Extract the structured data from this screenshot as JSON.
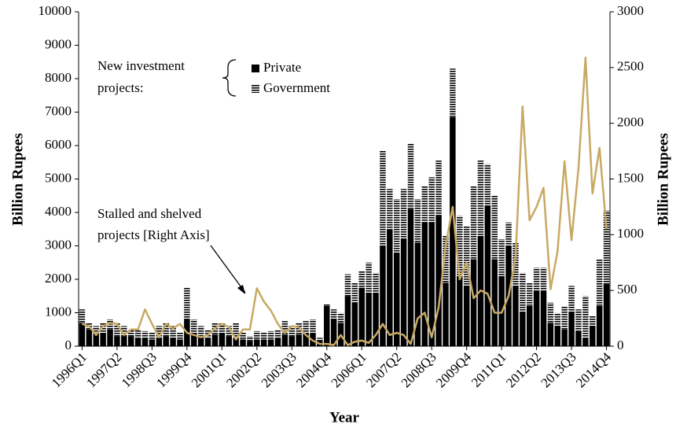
{
  "chart_data": {
    "type": "bar",
    "x_label": "Year",
    "y_label": "Billion Rupees",
    "y2_label": "Billion Rupees",
    "categories": [
      "1996Q1",
      null,
      null,
      null,
      null,
      "1997Q2",
      null,
      null,
      null,
      null,
      "1998Q3",
      null,
      null,
      null,
      null,
      "1999Q4",
      null,
      null,
      null,
      null,
      "2001Q1",
      null,
      null,
      null,
      null,
      "2002Q2",
      null,
      null,
      null,
      null,
      "2003Q3",
      null,
      null,
      null,
      null,
      "2004Q4",
      null,
      null,
      null,
      null,
      "2006Q1",
      null,
      null,
      null,
      null,
      "2007Q2",
      null,
      null,
      null,
      null,
      "2008Q3",
      null,
      null,
      null,
      null,
      "2009Q4",
      null,
      null,
      null,
      null,
      "2011Q1",
      null,
      null,
      null,
      null,
      "2012Q2",
      null,
      null,
      null,
      null,
      "2013Q3",
      null,
      null,
      null,
      null,
      "2014Q4"
    ],
    "ylim": [
      0,
      10000
    ],
    "yticks": [
      0,
      1000,
      2000,
      3000,
      4000,
      5000,
      6000,
      7000,
      8000,
      9000,
      10000
    ],
    "y2lim": [
      0,
      3000
    ],
    "y2ticks": [
      0,
      500,
      1000,
      1500,
      2000,
      2500,
      3000
    ],
    "legend_title": [
      "New investment",
      "projects:"
    ],
    "annotation": [
      "Stalled and shelved",
      "projects [Right Axis]"
    ],
    "series": [
      {
        "name": "Private",
        "color": "#000000",
        "pattern": "solid",
        "stack": true,
        "values": [
          700,
          500,
          400,
          400,
          500,
          300,
          300,
          300,
          250,
          250,
          200,
          250,
          300,
          250,
          200,
          800,
          400,
          300,
          250,
          350,
          400,
          300,
          250,
          200,
          150,
          200,
          200,
          200,
          250,
          350,
          300,
          350,
          400,
          400,
          150,
          1200,
          800,
          700,
          1500,
          1300,
          1750,
          1600,
          1600,
          3000,
          3500,
          2800,
          3200,
          4100,
          3100,
          3700,
          3700,
          3900,
          1900,
          6850,
          2100,
          1800,
          2600,
          3300,
          4200,
          2600,
          2100,
          3000,
          1800,
          1000,
          1200,
          1650,
          1650,
          700,
          600,
          500,
          1000,
          450,
          250,
          600,
          1200,
          1850
        ]
      },
      {
        "name": "Government",
        "color": "#000000",
        "pattern": "stripes",
        "stack": true,
        "values": [
          400,
          200,
          200,
          300,
          300,
          400,
          300,
          200,
          250,
          200,
          200,
          350,
          400,
          350,
          200,
          950,
          400,
          300,
          250,
          350,
          300,
          300,
          450,
          200,
          150,
          250,
          200,
          250,
          250,
          400,
          300,
          350,
          350,
          400,
          100,
          50,
          300,
          300,
          650,
          600,
          500,
          900,
          600,
          2850,
          1200,
          1600,
          1500,
          1950,
          1300,
          1100,
          1350,
          1650,
          1400,
          1450,
          1800,
          1800,
          2200,
          2250,
          1250,
          1900,
          1100,
          700,
          1300,
          1200,
          700,
          700,
          700,
          600,
          400,
          700,
          800,
          650,
          1250,
          300,
          1400,
          2200
        ]
      },
      {
        "name": "Stalled and shelved projects",
        "color": "#c8a964",
        "type": "line",
        "axis": "y2",
        "values": [
          200,
          180,
          100,
          180,
          210,
          200,
          100,
          150,
          150,
          330,
          200,
          80,
          200,
          160,
          200,
          120,
          100,
          80,
          100,
          160,
          200,
          170,
          60,
          150,
          150,
          520,
          400,
          320,
          200,
          120,
          180,
          170,
          100,
          50,
          20,
          20,
          10,
          100,
          10,
          40,
          50,
          30,
          100,
          200,
          100,
          120,
          100,
          20,
          250,
          300,
          80,
          350,
          900,
          1250,
          600,
          750,
          430,
          500,
          470,
          300,
          300,
          450,
          800,
          2150,
          1130,
          1250,
          1420,
          510,
          850,
          1660,
          950,
          1600,
          2590,
          1370,
          1780,
          1050
        ]
      }
    ]
  }
}
